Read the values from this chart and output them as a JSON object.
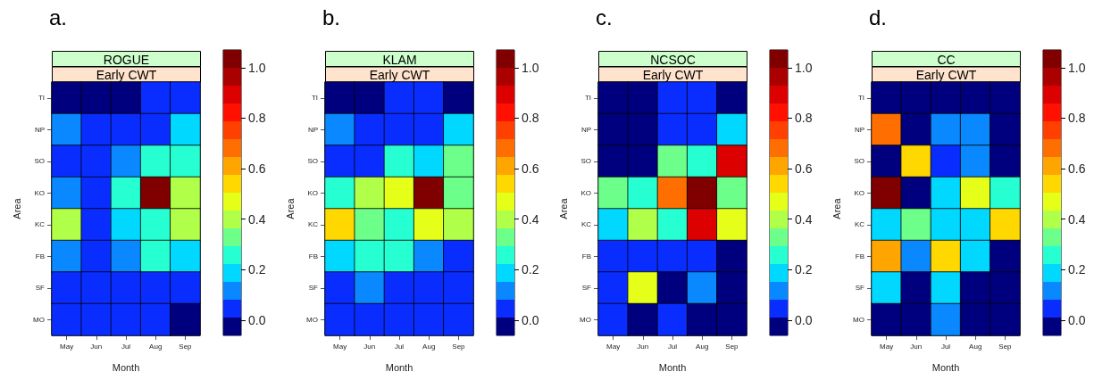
{
  "chart_data": [
    {
      "type": "heatmap",
      "title": "a.",
      "subtitle": "ROGUE",
      "annotations": [
        "Early CWT"
      ],
      "xlabel": "Month",
      "ylabel": "Area",
      "categories": [
        "May",
        "Jun",
        "Jul",
        "Aug",
        "Sep"
      ],
      "y_categories": [
        "TI",
        "NP",
        "SO",
        "KO",
        "KC",
        "FB",
        "SF",
        "MO"
      ],
      "cells": [
        [
          0,
          0,
          0,
          0.04,
          0.04
        ],
        [
          0.11,
          0.04,
          0.04,
          0.04,
          0.18
        ],
        [
          0.04,
          0.04,
          0.11,
          0.25,
          0.25
        ],
        [
          0.11,
          0.04,
          0.25,
          1.03,
          0.4
        ],
        [
          0.4,
          0.04,
          0.18,
          0.25,
          0.4
        ],
        [
          0.11,
          0.04,
          0.11,
          0.25,
          0.18
        ],
        [
          0.04,
          0.04,
          0.04,
          0.04,
          0.04
        ],
        [
          0.04,
          0.04,
          0.04,
          0.04,
          0
        ]
      ],
      "clim": [
        -0.06,
        1.07
      ],
      "cticks": [
        {
          "value": 0,
          "label": "0.0"
        },
        {
          "value": 0.2,
          "label": "0.2"
        },
        {
          "value": 0.4,
          "label": "0.4"
        },
        {
          "value": 0.6,
          "label": "0.6"
        },
        {
          "value": 0.8,
          "label": "0.8"
        },
        {
          "value": 1,
          "label": "1.0"
        }
      ]
    },
    {
      "type": "heatmap",
      "title": "b.",
      "subtitle": "KLAM",
      "annotations": [
        "Early CWT"
      ],
      "xlabel": "Month",
      "ylabel": "Area",
      "categories": [
        "May",
        "Jun",
        "Jul",
        "Aug",
        "Sep"
      ],
      "y_categories": [
        "TI",
        "NP",
        "SO",
        "KO",
        "KC",
        "FB",
        "SF",
        "MO"
      ],
      "cells": [
        [
          0,
          0,
          0.04,
          0.04,
          0
        ],
        [
          0.11,
          0.04,
          0.04,
          0.04,
          0.18
        ],
        [
          0.04,
          0.04,
          0.25,
          0.18,
          0.32
        ],
        [
          0.25,
          0.4,
          0.47,
          1.03,
          0.32
        ],
        [
          0.54,
          0.32,
          0.25,
          0.47,
          0.4
        ],
        [
          0.18,
          0.25,
          0.25,
          0.11,
          0.04
        ],
        [
          0.04,
          0.11,
          0.04,
          0.04,
          0.04
        ],
        [
          0.04,
          0.04,
          0.04,
          0.04,
          0.04
        ]
      ],
      "clim": [
        -0.06,
        1.07
      ],
      "cticks": [
        {
          "value": 0,
          "label": "0.0"
        },
        {
          "value": 0.2,
          "label": "0.2"
        },
        {
          "value": 0.4,
          "label": "0.4"
        },
        {
          "value": 0.6,
          "label": "0.6"
        },
        {
          "value": 0.8,
          "label": "0.8"
        },
        {
          "value": 1,
          "label": "1.0"
        }
      ]
    },
    {
      "type": "heatmap",
      "title": "c.",
      "subtitle": "NCSOC",
      "annotations": [
        "Early CWT"
      ],
      "xlabel": "Month",
      "ylabel": "Area",
      "categories": [
        "May",
        "Jun",
        "Jul",
        "Aug",
        "Sep"
      ],
      "y_categories": [
        "TI",
        "NP",
        "SO",
        "KO",
        "KC",
        "FB",
        "SF",
        "MO"
      ],
      "cells": [
        [
          0,
          0,
          0.04,
          0.04,
          0
        ],
        [
          0,
          0,
          0.04,
          0.04,
          0.18
        ],
        [
          0,
          0,
          0.32,
          0.25,
          0.89
        ],
        [
          0.32,
          0.25,
          0.68,
          1.03,
          0.32
        ],
        [
          0.18,
          0.4,
          0.25,
          0.89,
          0.47
        ],
        [
          0.04,
          0.04,
          0.04,
          0.04,
          0
        ],
        [
          0.04,
          0.47,
          0,
          0.11,
          0
        ],
        [
          0.04,
          0,
          0.04,
          0,
          0
        ]
      ],
      "clim": [
        -0.06,
        1.07
      ],
      "cticks": [
        {
          "value": 0,
          "label": "0.0"
        },
        {
          "value": 0.2,
          "label": "0.2"
        },
        {
          "value": 0.4,
          "label": "0.4"
        },
        {
          "value": 0.6,
          "label": "0.6"
        },
        {
          "value": 0.8,
          "label": "0.8"
        },
        {
          "value": 1,
          "label": "1.0"
        }
      ]
    },
    {
      "type": "heatmap",
      "title": "d.",
      "subtitle": "CC",
      "annotations": [
        "Early CWT"
      ],
      "xlabel": "Month",
      "ylabel": "Area",
      "categories": [
        "May",
        "Jun",
        "Jul",
        "Aug",
        "Sep"
      ],
      "y_categories": [
        "TI",
        "NP",
        "SO",
        "KO",
        "KC",
        "FB",
        "SF",
        "MO"
      ],
      "cells": [
        [
          0,
          0,
          0,
          0,
          0
        ],
        [
          0.68,
          0,
          0.11,
          0.11,
          0
        ],
        [
          0,
          0.54,
          0.04,
          0.11,
          0
        ],
        [
          1.03,
          0,
          0.18,
          0.47,
          0.25
        ],
        [
          0.18,
          0.32,
          0.18,
          0.18,
          0.54
        ],
        [
          0.61,
          0.11,
          0.54,
          0.18,
          0
        ],
        [
          0.18,
          0,
          0.18,
          0,
          0
        ],
        [
          0,
          0,
          0.11,
          0,
          0
        ]
      ],
      "clim": [
        -0.06,
        1.07
      ],
      "cticks": [
        {
          "value": 0,
          "label": "0.0"
        },
        {
          "value": 0.2,
          "label": "0.2"
        },
        {
          "value": 0.4,
          "label": "0.4"
        },
        {
          "value": 0.6,
          "label": "0.6"
        },
        {
          "value": 0.8,
          "label": "0.8"
        },
        {
          "value": 1,
          "label": "1.0"
        }
      ]
    }
  ]
}
